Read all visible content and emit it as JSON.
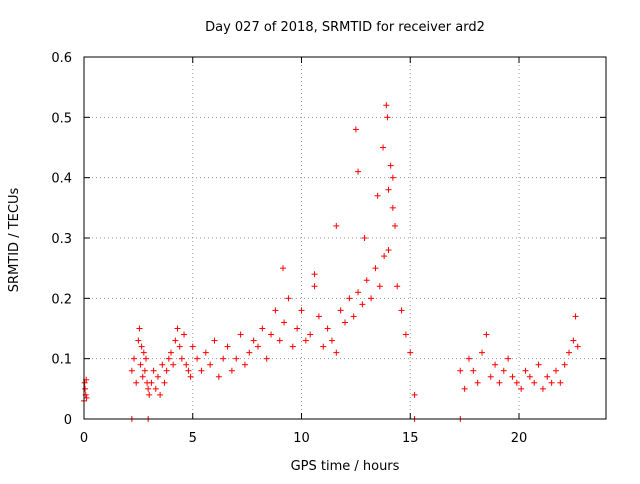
{
  "chart_data": {
    "type": "scatter",
    "title": "Day 027 of 2018, SRMTID for receiver ard2",
    "xlabel": "GPS time / hours",
    "ylabel": "SRMTID / TECUs",
    "xlim": [
      0,
      24
    ],
    "ylim": [
      0,
      0.6
    ],
    "xticks": [
      0,
      5,
      10,
      15,
      20
    ],
    "yticks": [
      0,
      0.1,
      0.2,
      0.3,
      0.4,
      0.5,
      0.6
    ],
    "grid": true,
    "marker": "+",
    "series": [
      {
        "name": "SRMTID ard2",
        "color": "#ff0000",
        "x": [
          0.0,
          0.03,
          0.05,
          0.08,
          0.1,
          0.12,
          2.2,
          2.3,
          2.4,
          2.5,
          2.55,
          2.6,
          2.65,
          2.7,
          2.75,
          2.8,
          2.85,
          2.9,
          2.95,
          3.0,
          3.1,
          3.2,
          3.3,
          3.4,
          3.5,
          3.6,
          3.7,
          3.8,
          3.9,
          4.0,
          4.1,
          4.2,
          4.3,
          4.4,
          4.5,
          4.6,
          4.7,
          4.8,
          4.9,
          5.0,
          5.2,
          5.4,
          5.6,
          5.8,
          6.0,
          6.2,
          6.4,
          6.6,
          6.8,
          7.0,
          7.2,
          7.4,
          7.6,
          7.8,
          8.0,
          8.2,
          8.4,
          8.6,
          8.8,
          9.0,
          9.2,
          9.4,
          9.6,
          9.8,
          10.0,
          10.2,
          10.4,
          10.6,
          10.8,
          11.0,
          11.2,
          11.4,
          11.6,
          11.8,
          12.0,
          12.2,
          12.4,
          12.6,
          12.8,
          13.0,
          13.2,
          13.4,
          13.6,
          13.8,
          14.0,
          14.2,
          14.4,
          14.6,
          14.8,
          15.0,
          15.2,
          17.3,
          17.5,
          17.7,
          17.9,
          18.1,
          18.3,
          18.5,
          18.7,
          18.9,
          19.1,
          19.3,
          19.5,
          19.7,
          19.9,
          20.1,
          20.3,
          20.5,
          20.7,
          20.9,
          21.1,
          21.3,
          21.5,
          21.7,
          21.9,
          22.1,
          22.3,
          22.5,
          22.6,
          22.7,
          2.2,
          2.95,
          15.2,
          17.3,
          13.9,
          13.95,
          13.75,
          12.5,
          14.2,
          14.0,
          14.3,
          12.6,
          11.6,
          12.9,
          13.5,
          14.1,
          9.15,
          10.6
        ],
        "y": [
          0.03,
          0.06,
          0.05,
          0.04,
          0.065,
          0.035,
          0.08,
          0.1,
          0.06,
          0.13,
          0.15,
          0.09,
          0.12,
          0.07,
          0.11,
          0.08,
          0.1,
          0.06,
          0.05,
          0.04,
          0.06,
          0.08,
          0.05,
          0.07,
          0.04,
          0.09,
          0.06,
          0.08,
          0.1,
          0.11,
          0.09,
          0.13,
          0.15,
          0.12,
          0.1,
          0.14,
          0.09,
          0.08,
          0.07,
          0.12,
          0.1,
          0.08,
          0.11,
          0.09,
          0.13,
          0.07,
          0.1,
          0.12,
          0.08,
          0.1,
          0.14,
          0.09,
          0.11,
          0.13,
          0.12,
          0.15,
          0.1,
          0.14,
          0.18,
          0.13,
          0.16,
          0.2,
          0.12,
          0.15,
          0.18,
          0.13,
          0.14,
          0.22,
          0.17,
          0.12,
          0.15,
          0.13,
          0.11,
          0.18,
          0.16,
          0.2,
          0.17,
          0.21,
          0.19,
          0.23,
          0.2,
          0.25,
          0.22,
          0.27,
          0.28,
          0.35,
          0.22,
          0.18,
          0.14,
          0.11,
          0.04,
          0.08,
          0.05,
          0.1,
          0.08,
          0.06,
          0.11,
          0.14,
          0.07,
          0.09,
          0.06,
          0.08,
          0.1,
          0.07,
          0.06,
          0.05,
          0.08,
          0.07,
          0.06,
          0.09,
          0.05,
          0.07,
          0.06,
          0.08,
          0.06,
          0.09,
          0.11,
          0.13,
          0.17,
          0.12,
          0.0,
          0.0,
          0.0,
          0.0,
          0.52,
          0.5,
          0.45,
          0.48,
          0.4,
          0.38,
          0.32,
          0.41,
          0.32,
          0.3,
          0.37,
          0.42,
          0.25,
          0.24
        ]
      }
    ]
  }
}
